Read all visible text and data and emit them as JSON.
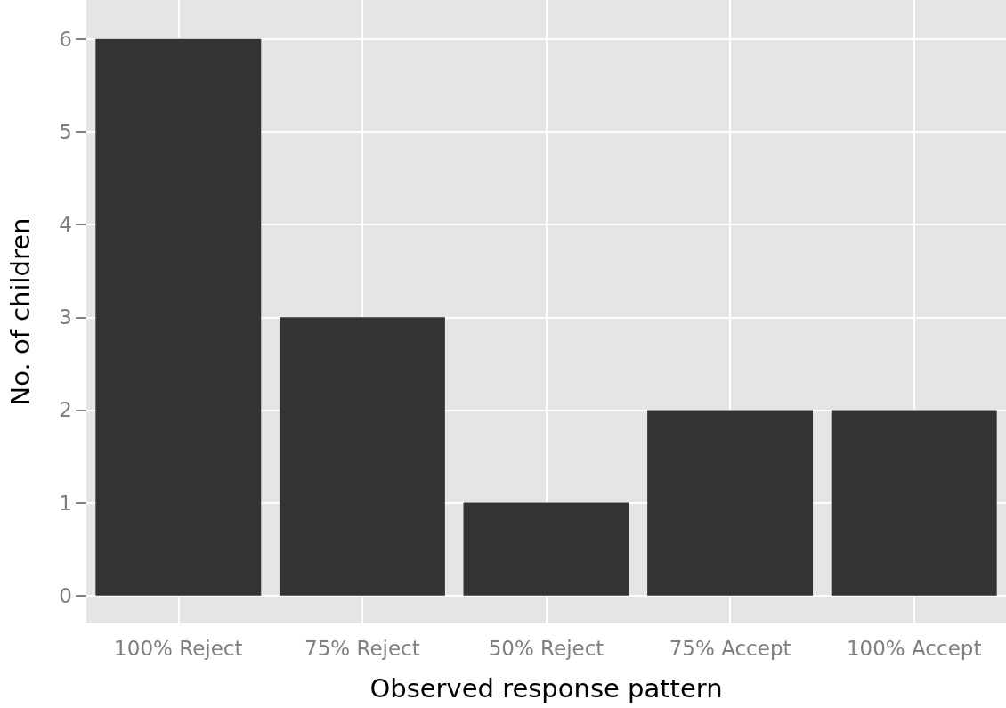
{
  "chart_data": {
    "type": "bar",
    "xlabel": "Observed response pattern",
    "ylabel": "No. of children",
    "categories": [
      "100% Reject",
      "75% Reject",
      "50% Reject",
      "75% Accept",
      "100% Accept"
    ],
    "values": [
      6,
      3,
      1,
      2,
      2
    ],
    "color": "#333333",
    "ylim": [
      -0.3,
      6.42
    ],
    "yticks": [
      0,
      1,
      2,
      3,
      4,
      5,
      6
    ],
    "grid": true
  }
}
